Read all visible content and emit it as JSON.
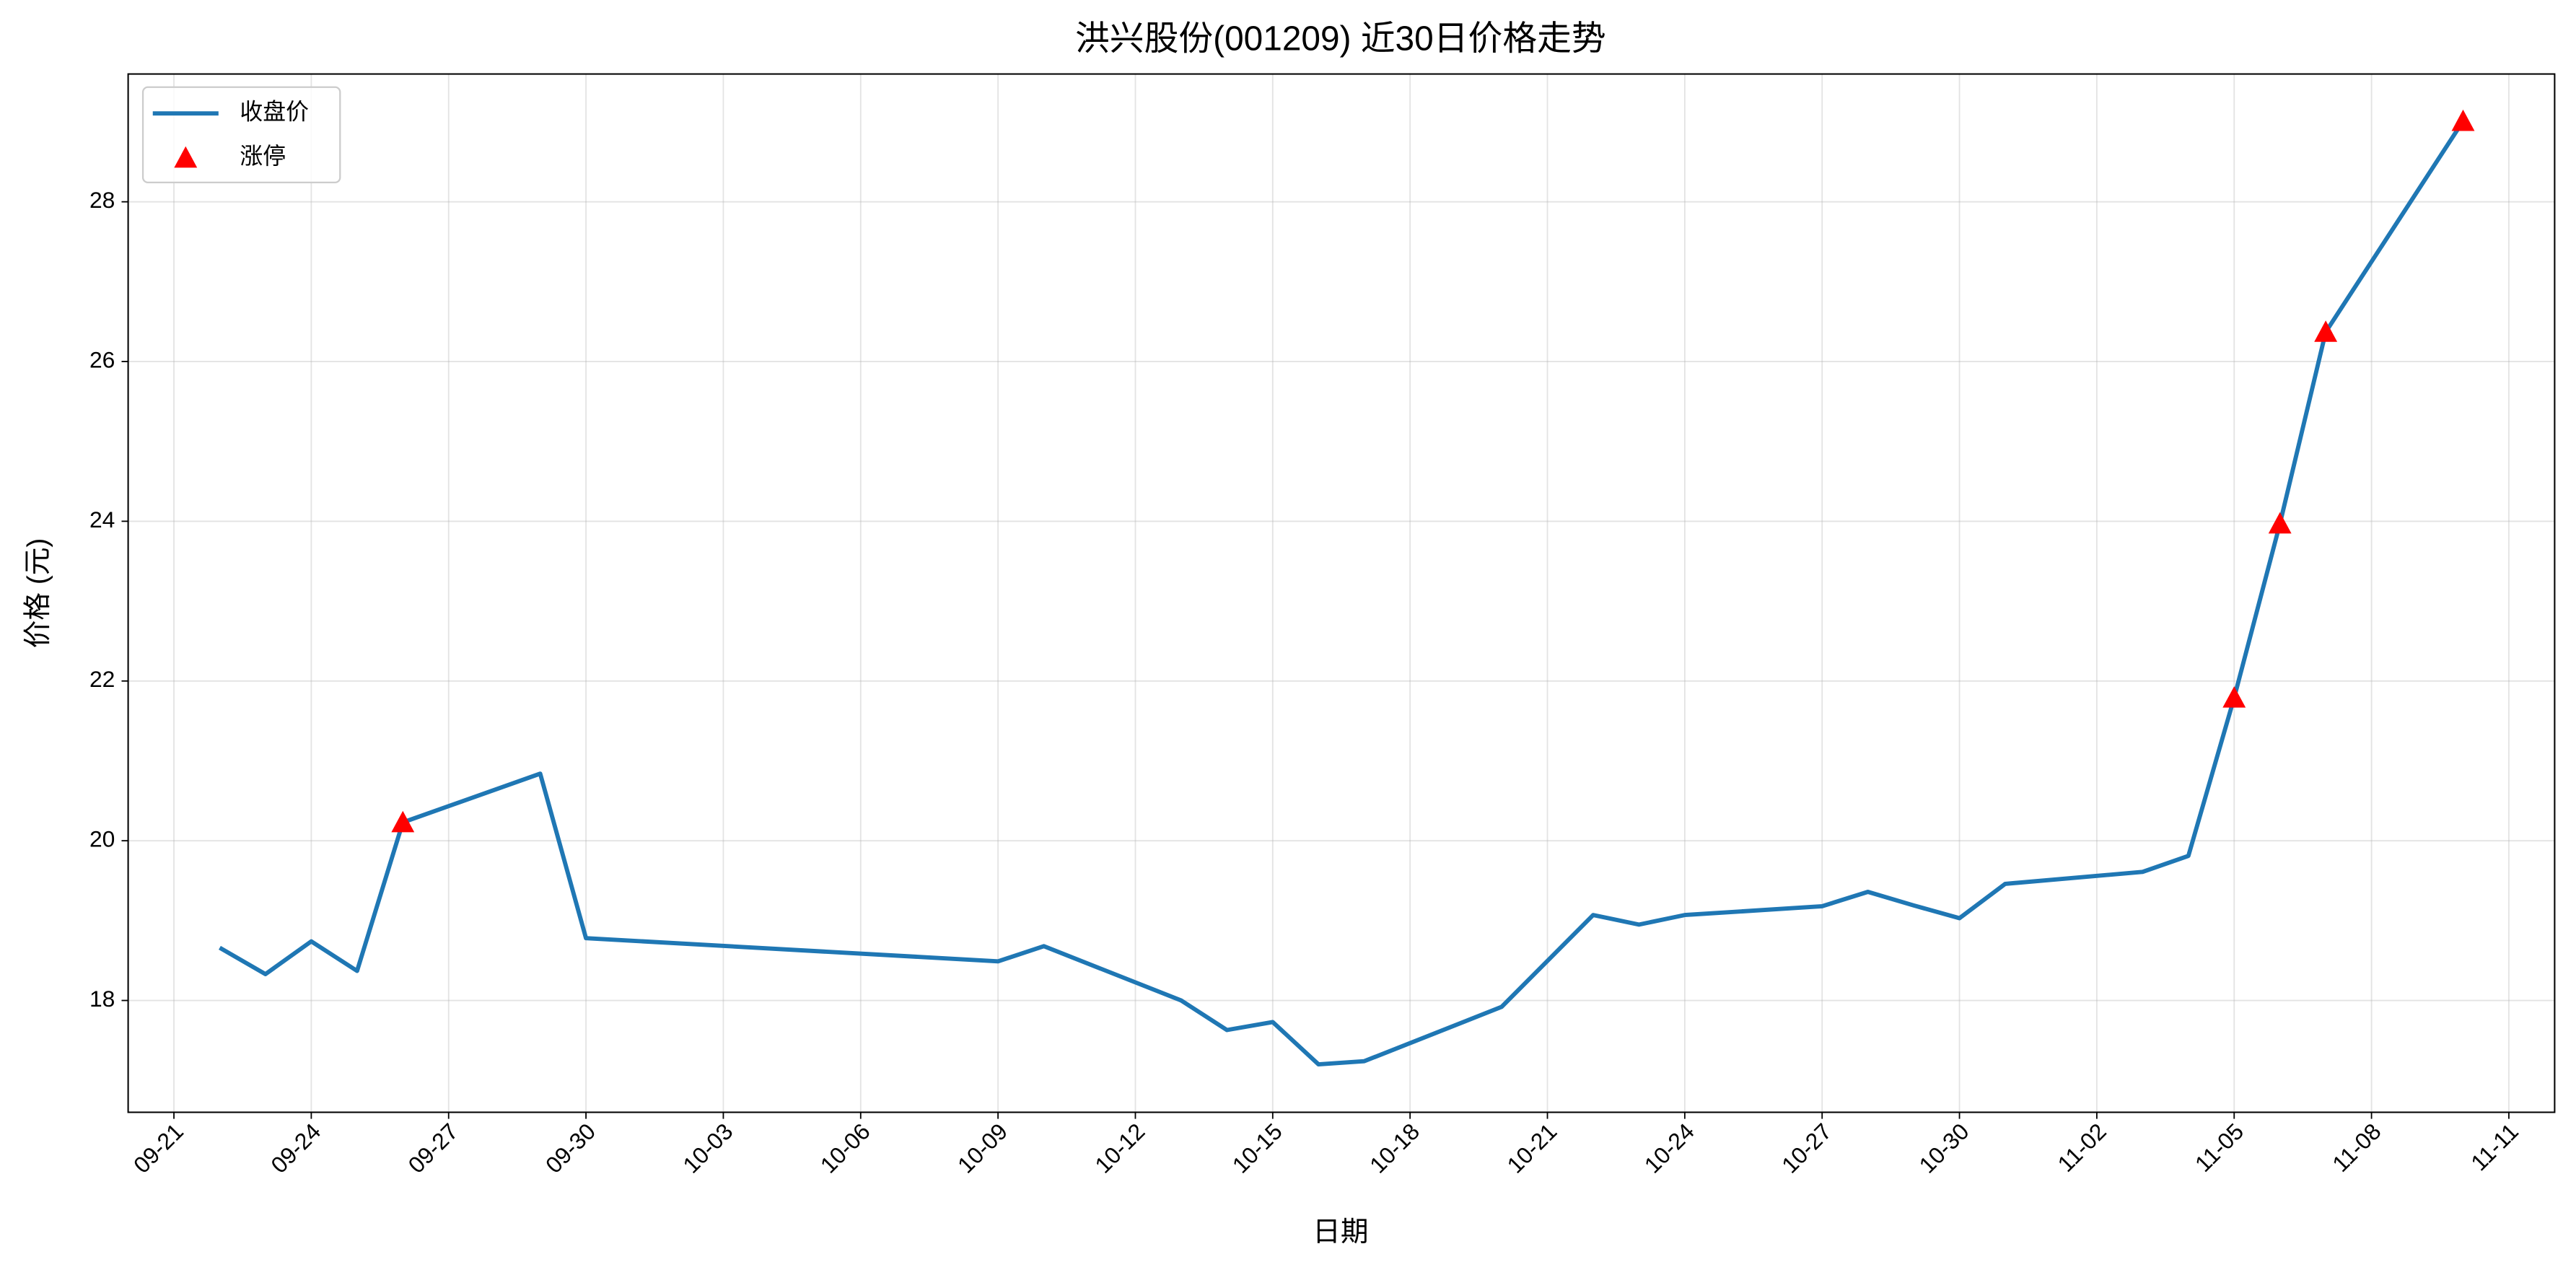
{
  "chart_data": {
    "type": "line",
    "title": "洪兴股份(001209) 近30日价格走势",
    "x_label": "日期",
    "y_label": "价格 (元)",
    "xlim": [
      "09-20",
      "11-12"
    ],
    "xticks": [
      "09-21",
      "09-24",
      "09-27",
      "09-30",
      "10-03",
      "10-06",
      "10-09",
      "10-12",
      "10-15",
      "10-18",
      "10-21",
      "10-24",
      "10-27",
      "10-30",
      "11-02",
      "11-05",
      "11-08",
      "11-11"
    ],
    "ylim": [
      16.6,
      29.6
    ],
    "yticks": [
      18,
      20,
      22,
      24,
      26,
      28
    ],
    "grid": true,
    "legend": "upper left",
    "series": [
      {
        "name": "收盘价",
        "type": "line",
        "color": "#1f77b4",
        "x": [
          "09-22",
          "09-23",
          "09-24",
          "09-25",
          "09-26",
          "09-29",
          "09-30",
          "10-09",
          "10-10",
          "10-13",
          "10-14",
          "10-15",
          "10-16",
          "10-17",
          "10-20",
          "10-22",
          "10-23",
          "10-24",
          "10-27",
          "10-28",
          "10-29",
          "10-30",
          "10-31",
          "11-03",
          "11-04",
          "11-05",
          "11-06",
          "11-07",
          "11-10"
        ],
        "values": [
          18.66,
          18.33,
          18.74,
          18.37,
          20.23,
          20.84,
          18.78,
          18.49,
          18.68,
          18.0,
          17.63,
          17.73,
          17.2,
          17.24,
          17.92,
          19.07,
          18.95,
          19.07,
          19.18,
          19.36,
          19.19,
          19.03,
          19.46,
          19.61,
          19.81,
          21.79,
          23.97,
          26.37,
          29.01
        ]
      },
      {
        "name": "涨停",
        "type": "scatter",
        "color": "#ff0000",
        "x": [
          "09-26",
          "11-05",
          "11-06",
          "11-07",
          "11-10"
        ],
        "values": [
          20.23,
          21.79,
          23.97,
          26.37,
          29.01
        ]
      }
    ]
  }
}
